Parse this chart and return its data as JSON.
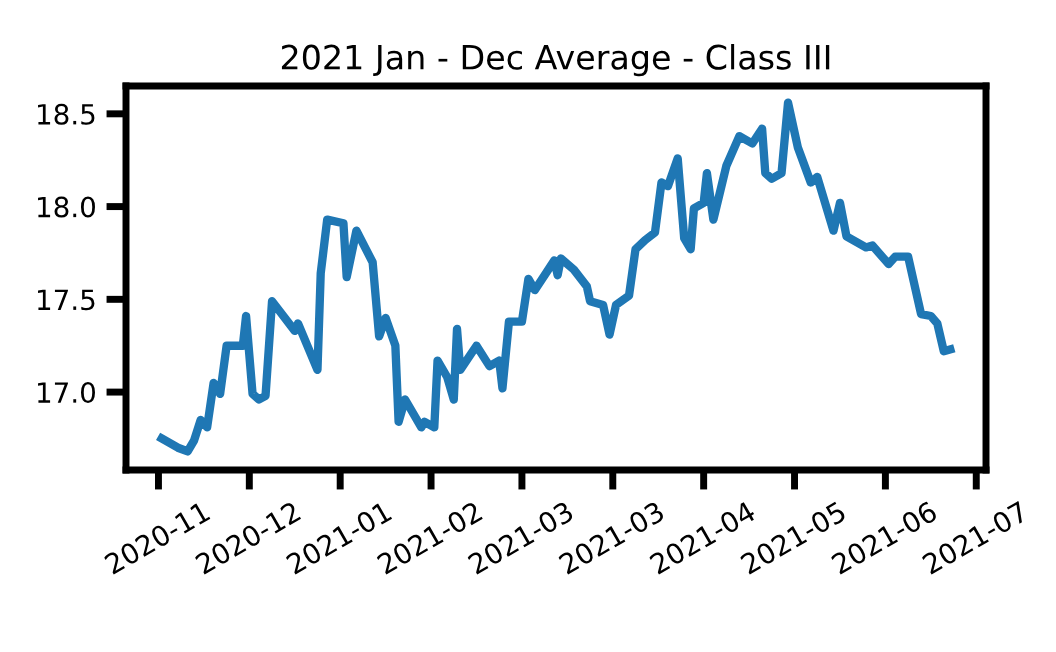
{
  "chart_data": {
    "type": "line",
    "title": "2021 Jan - Dec Average - Class III",
    "x": [
      "2020-11-11",
      "2020-11-16",
      "2020-11-19",
      "2020-11-21",
      "2020-11-23",
      "2020-11-25",
      "2020-11-27",
      "2020-11-29",
      "2020-12-01",
      "2020-12-06",
      "2020-12-07",
      "2020-12-09",
      "2020-12-11",
      "2020-12-13",
      "2020-12-15",
      "2020-12-22",
      "2020-12-23",
      "2020-12-29",
      "2020-12-30",
      "2021-01-01",
      "2021-01-06",
      "2021-01-07",
      "2021-01-10",
      "2021-01-15",
      "2021-01-17",
      "2021-01-19",
      "2021-01-22",
      "2021-01-23",
      "2021-01-25",
      "2021-01-30",
      "2021-01-31",
      "2021-02-03",
      "2021-02-04",
      "2021-02-07",
      "2021-02-09",
      "2021-02-10",
      "2021-02-11",
      "2021-02-16",
      "2021-02-20",
      "2021-02-23",
      "2021-02-24",
      "2021-02-26",
      "2021-03-02",
      "2021-03-04",
      "2021-03-06",
      "2021-03-12",
      "2021-03-13",
      "2021-03-14",
      "2021-03-18",
      "2021-03-22",
      "2021-03-23",
      "2021-03-27",
      "2021-03-29",
      "2021-03-31",
      "2021-04-04",
      "2021-04-06",
      "2021-04-09",
      "2021-04-12",
      "2021-04-14",
      "2021-04-16",
      "2021-04-19",
      "2021-04-21",
      "2021-04-23",
      "2021-04-24",
      "2021-04-27",
      "2021-04-28",
      "2021-04-30",
      "2021-05-04",
      "2021-05-08",
      "2021-05-12",
      "2021-05-15",
      "2021-05-16",
      "2021-05-18",
      "2021-05-21",
      "2021-05-23",
      "2021-05-26",
      "2021-05-30",
      "2021-06-01",
      "2021-06-06",
      "2021-06-08",
      "2021-06-10",
      "2021-06-16",
      "2021-06-18",
      "2021-06-23",
      "2021-06-25",
      "2021-06-29",
      "2021-07-03",
      "2021-07-06",
      "2021-07-08",
      "2021-07-10",
      "2021-07-12"
    ],
    "series": [
      {
        "color": "#1f77b4",
        "values": [
          16.75,
          16.7,
          16.68,
          16.74,
          16.85,
          16.81,
          17.05,
          16.99,
          17.25,
          17.25,
          17.41,
          16.99,
          16.96,
          16.98,
          17.49,
          17.33,
          17.37,
          17.12,
          17.64,
          17.93,
          17.91,
          17.62,
          17.87,
          17.7,
          17.3,
          17.4,
          17.25,
          16.84,
          16.96,
          16.81,
          16.84,
          16.81,
          17.17,
          17.08,
          16.96,
          17.34,
          17.12,
          17.25,
          17.14,
          17.17,
          17.02,
          17.38,
          17.38,
          17.61,
          17.55,
          17.71,
          17.63,
          17.72,
          17.66,
          17.57,
          17.49,
          17.47,
          17.31,
          17.47,
          17.52,
          17.77,
          17.82,
          17.86,
          18.13,
          18.11,
          18.26,
          17.83,
          17.77,
          17.99,
          18.02,
          18.18,
          17.93,
          18.22,
          18.38,
          18.34,
          18.42,
          18.18,
          18.15,
          18.18,
          18.56,
          18.32,
          18.13,
          18.16,
          17.87,
          18.02,
          17.84,
          17.78,
          17.79,
          17.69,
          17.73,
          17.73,
          17.42,
          17.41,
          17.37,
          17.22,
          17.23
        ]
      }
    ],
    "xlim": [
      "2020-10-31",
      "2021-07-23"
    ],
    "xticks": [
      {
        "value": "2020-11-10",
        "label": "2020-11"
      },
      {
        "value": "2020-12-08",
        "label": "2020-12"
      },
      {
        "value": "2021-01-05",
        "label": "2021-01"
      },
      {
        "value": "2021-02-02",
        "label": "2021-02"
      },
      {
        "value": "2021-03-02",
        "label": "2021-03"
      },
      {
        "value": "2021-03-30",
        "label": "2021-03"
      },
      {
        "value": "2021-04-27",
        "label": "2021-04"
      },
      {
        "value": "2021-05-25",
        "label": "2021-05"
      },
      {
        "value": "2021-06-22",
        "label": "2021-06"
      },
      {
        "value": "2021-07-20",
        "label": "2021-07"
      }
    ],
    "ylim": [
      16.58,
      18.65
    ],
    "yticks": [
      {
        "value": 17.0,
        "label": "17.0"
      },
      {
        "value": 17.5,
        "label": "17.5"
      },
      {
        "value": 18.0,
        "label": "18.0"
      },
      {
        "value": 18.5,
        "label": "18.5"
      }
    ],
    "marker": "none",
    "line_style": "solid"
  }
}
